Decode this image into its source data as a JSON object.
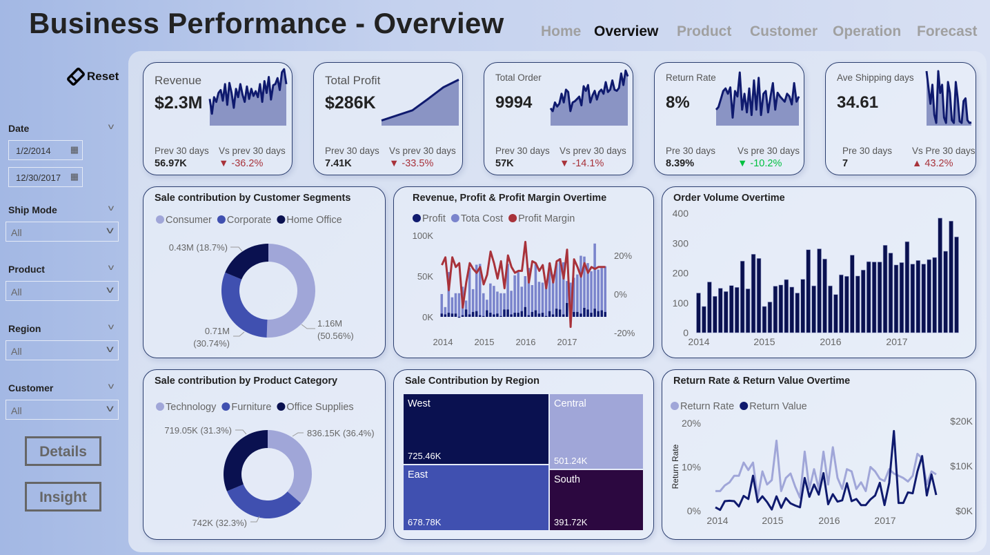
{
  "header": {
    "title": "Business Performance - Overview",
    "nav": [
      {
        "label": "Home",
        "active": false
      },
      {
        "label": "Overview",
        "active": true
      },
      {
        "label": "Product",
        "active": false
      },
      {
        "label": "Customer",
        "active": false
      },
      {
        "label": "Operation",
        "active": false
      },
      {
        "label": "Forecast",
        "active": false
      }
    ]
  },
  "sidebar": {
    "reset_label": "Reset",
    "date": {
      "label": "Date",
      "start": "1/2/2014",
      "end": "12/30/2017"
    },
    "filters": [
      {
        "label": "Ship Mode",
        "value": "All"
      },
      {
        "label": "Product",
        "value": "All"
      },
      {
        "label": "Region",
        "value": "All"
      },
      {
        "label": "Customer",
        "value": "All"
      }
    ],
    "details_label": "Details",
    "insight_label": "Insight"
  },
  "colors": {
    "dark_navy": "#0a1150",
    "mid_blue": "#4050b0",
    "light_blue": "#a0a6d8",
    "red": "#a8323a",
    "green": "#00c040",
    "sparkline_fill": "#8a94c4"
  },
  "kpis": [
    {
      "title": "Revenue",
      "value": "$2.3M",
      "prev_label": "Prev 30 days",
      "prev_value": "56.97K",
      "vs_label": "Vs prev 30 days",
      "delta": "-36.2%",
      "direction": "down",
      "delta_color": "#a8323a",
      "trend": [
        45,
        20,
        48,
        40,
        55,
        60,
        42,
        70,
        35,
        72,
        55,
        30,
        62,
        48,
        70,
        52,
        40,
        66,
        45,
        62,
        50,
        58,
        48,
        70,
        40,
        75,
        55,
        82,
        44,
        68,
        70,
        80,
        60,
        90,
        95,
        70
      ]
    },
    {
      "title": "Total Profit",
      "value": "$286K",
      "prev_label": "Prev 30 days",
      "prev_value": "7.41K",
      "vs_label": "Vs prev 30 days",
      "delta": "-33.5%",
      "direction": "down",
      "delta_color": "#a8323a",
      "trend": [
        10,
        20,
        30,
        52,
        75,
        90
      ]
    },
    {
      "title": "Total Order",
      "value": "9994",
      "prev_label": "Prev 30 days",
      "prev_value": "57K",
      "vs_label": "Vs prev 30 days",
      "delta": "-14.1%",
      "direction": "down",
      "delta_color": "#a8323a",
      "trend": [
        30,
        25,
        40,
        33,
        38,
        55,
        40,
        62,
        58,
        25,
        40,
        42,
        46,
        50,
        35,
        68,
        60,
        70,
        40,
        52,
        60,
        45,
        58,
        62,
        55,
        75,
        58,
        62,
        78,
        62,
        60,
        65,
        90,
        70,
        95,
        85
      ]
    },
    {
      "title": "Return Rate",
      "value": "8%",
      "prev_label": "Pre 30 days",
      "prev_value": "8.39%",
      "vs_label": "Vs pre 30 days",
      "delta": "-10.2%",
      "direction": "down",
      "delta_color": "#00c040",
      "trend": [
        30,
        35,
        50,
        65,
        70,
        60,
        72,
        15,
        65,
        55,
        100,
        30,
        60,
        25,
        70,
        20,
        85,
        30,
        90,
        20,
        60,
        65,
        25,
        55,
        80,
        30,
        62,
        55,
        50,
        45,
        60,
        55,
        40,
        80,
        45,
        55
      ]
    },
    {
      "title": "Ave Shipping days",
      "value": "34.61",
      "prev_label": "Pre 30 days",
      "prev_value": "7",
      "vs_label": "Vs Pre 30 days",
      "delta": "43.2%",
      "direction": "up",
      "delta_color": "#a8323a",
      "trend": [
        100,
        70,
        40,
        75,
        20,
        5,
        100,
        60,
        75,
        15,
        5,
        80,
        60,
        10,
        5,
        80,
        50,
        8,
        5,
        45,
        50,
        10,
        5,
        6
      ]
    }
  ],
  "chart_data": [
    {
      "type": "pie",
      "title": "Sale contribution by Customer Segments",
      "categories": [
        "Consumer",
        "Corporate",
        "Home Office"
      ],
      "values": [
        1.16,
        0.71,
        0.43
      ],
      "labels": [
        "1.16M (50.56%)",
        "0.71M (30.74%)",
        "0.43M (18.7%)"
      ],
      "percents": [
        50.56,
        30.74,
        18.7
      ],
      "colors": [
        "#a0a6d8",
        "#4050b0",
        "#0a1150"
      ],
      "legend": "top",
      "donut": true
    },
    {
      "type": "bar",
      "title": "Revenue, Profit & Profit Margin Overtime",
      "legend": "top",
      "x_ticks": [
        "2014",
        "2015",
        "2016",
        "2017"
      ],
      "y_ticks": [
        "0K",
        "50K",
        "100K"
      ],
      "y2_ticks": [
        "-20%",
        "0%",
        "20%"
      ],
      "ylim": [
        0,
        100
      ],
      "y2lim": [
        -20,
        20
      ],
      "series": [
        {
          "name": "Profit",
          "type": "bar",
          "color": "#0f1a6e",
          "values": [
            4,
            3,
            5,
            4,
            4,
            -1,
            2,
            9,
            3,
            6,
            7,
            2,
            1,
            8,
            5,
            3,
            4,
            1,
            9,
            9,
            3,
            5,
            5,
            7,
            12,
            2,
            6,
            8,
            4,
            5,
            1,
            7,
            3,
            10,
            9,
            3,
            17,
            -2,
            6,
            6,
            4,
            11,
            9,
            5,
            10,
            7,
            8,
            6
          ]
        },
        {
          "name": "Tota Cost",
          "type": "bar",
          "color": "#7a84cc",
          "values": [
            28,
            12,
            55,
            24,
            29,
            29,
            37,
            20,
            60,
            34,
            64,
            65,
            29,
            21,
            41,
            38,
            31,
            29,
            29,
            65,
            32,
            51,
            55,
            37,
            50,
            60,
            39,
            65,
            43,
            42,
            40,
            66,
            52,
            66,
            72,
            67,
            44,
            42,
            48,
            52,
            75,
            74,
            66,
            56,
            90,
            58,
            60,
            62
          ]
        },
        {
          "name": "Profit Margin",
          "type": "line",
          "color": "#a8323a",
          "values": [
            15,
            19,
            2,
            19,
            14,
            16,
            -7,
            6,
            16,
            13,
            11,
            14,
            5,
            10,
            22,
            16,
            8,
            17,
            3,
            20,
            14,
            11,
            12,
            12,
            27,
            6,
            17,
            16,
            12,
            15,
            3,
            16,
            6,
            17,
            18,
            8,
            23,
            -17,
            18,
            14,
            9,
            16,
            11,
            14,
            13,
            14,
            14,
            14
          ]
        }
      ]
    },
    {
      "type": "bar",
      "title": "Order Volume Overtime",
      "x_ticks": [
        "2014",
        "2015",
        "2016",
        "2017"
      ],
      "y_ticks": [
        "0",
        "100",
        "200",
        "300",
        "400"
      ],
      "ylim": [
        0,
        400
      ],
      "color": "#0a1150",
      "values": [
        133,
        88,
        170,
        122,
        149,
        138,
        158,
        152,
        240,
        147,
        263,
        249,
        88,
        103,
        156,
        160,
        178,
        153,
        133,
        179,
        278,
        157,
        281,
        247,
        157,
        128,
        194,
        189,
        260,
        190,
        210,
        238,
        237,
        237,
        293,
        267,
        227,
        235,
        305,
        230,
        242,
        230,
        245,
        252,
        384,
        273,
        374,
        321
      ]
    },
    {
      "type": "pie",
      "title": "Sale contribution by Product Category",
      "categories": [
        "Technology",
        "Furniture",
        "Office Supplies"
      ],
      "values": [
        836.15,
        742,
        719.05
      ],
      "labels": [
        "836.15K (36.4%)",
        "742K (32.3%)",
        "719.05K (31.3%)"
      ],
      "percents": [
        36.4,
        32.3,
        31.3
      ],
      "colors": [
        "#a0a6d8",
        "#4050b0",
        "#0a1150"
      ],
      "legend": "top",
      "donut": true
    },
    {
      "type": "heatmap",
      "subtype": "treemap",
      "title": "Sale Contribution by Region",
      "categories": [
        "West",
        "East",
        "Central",
        "South"
      ],
      "values": [
        725.46,
        678.78,
        501.24,
        391.72
      ],
      "labels": [
        "725.46K",
        "678.78K",
        "501.24K",
        "391.72K"
      ],
      "colors": [
        "#0a1150",
        "#4050b0",
        "#a0a6d8",
        "#2c0840"
      ]
    },
    {
      "type": "line",
      "title": "Return Rate & Return Value Overtime",
      "legend": "top",
      "ylabel": "Return Rate",
      "x_ticks": [
        "2014",
        "2015",
        "2016",
        "2017"
      ],
      "y_ticks": [
        "0%",
        "10%",
        "20%"
      ],
      "y2_ticks": [
        "$0K",
        "$10K",
        "$20K"
      ],
      "ylim": [
        0,
        20
      ],
      "y2lim": [
        0,
        20
      ],
      "series": [
        {
          "name": "Return Rate",
          "color": "#a0a6d8",
          "values": [
            4.5,
            4.5,
            5.8,
            6.5,
            8,
            8,
            11,
            9.3,
            11,
            3,
            9,
            6,
            7,
            16,
            4.5,
            7.5,
            8.5,
            5.5,
            3,
            13.5,
            5,
            9.5,
            5,
            13.5,
            6,
            14.5,
            7.5,
            5,
            9.5,
            9,
            5,
            6.5,
            4.5,
            10,
            9,
            7.3,
            6.8,
            9.5,
            8.5,
            8,
            7.5,
            6.7,
            8,
            13,
            12,
            6,
            9,
            8.3
          ]
        },
        {
          "name": "Return Value",
          "color": "#0f1a6e",
          "values": [
            0.8,
            0.2,
            2.2,
            2.3,
            2.2,
            1,
            3.4,
            2.7,
            8,
            2,
            3.3,
            2,
            0.3,
            3.3,
            0.7,
            2.9,
            1.7,
            1.2,
            0.8,
            7.5,
            3.2,
            6,
            3.7,
            8.6,
            1.5,
            3.8,
            2.1,
            2.4,
            6.3,
            2.2,
            2.7,
            1.3,
            1.3,
            2.6,
            3.5,
            6.4,
            1.3,
            6.4,
            18.2,
            1.8,
            1.8,
            4.2,
            4,
            9,
            12.5,
            3.5,
            8.3,
            3.6
          ]
        }
      ]
    }
  ]
}
